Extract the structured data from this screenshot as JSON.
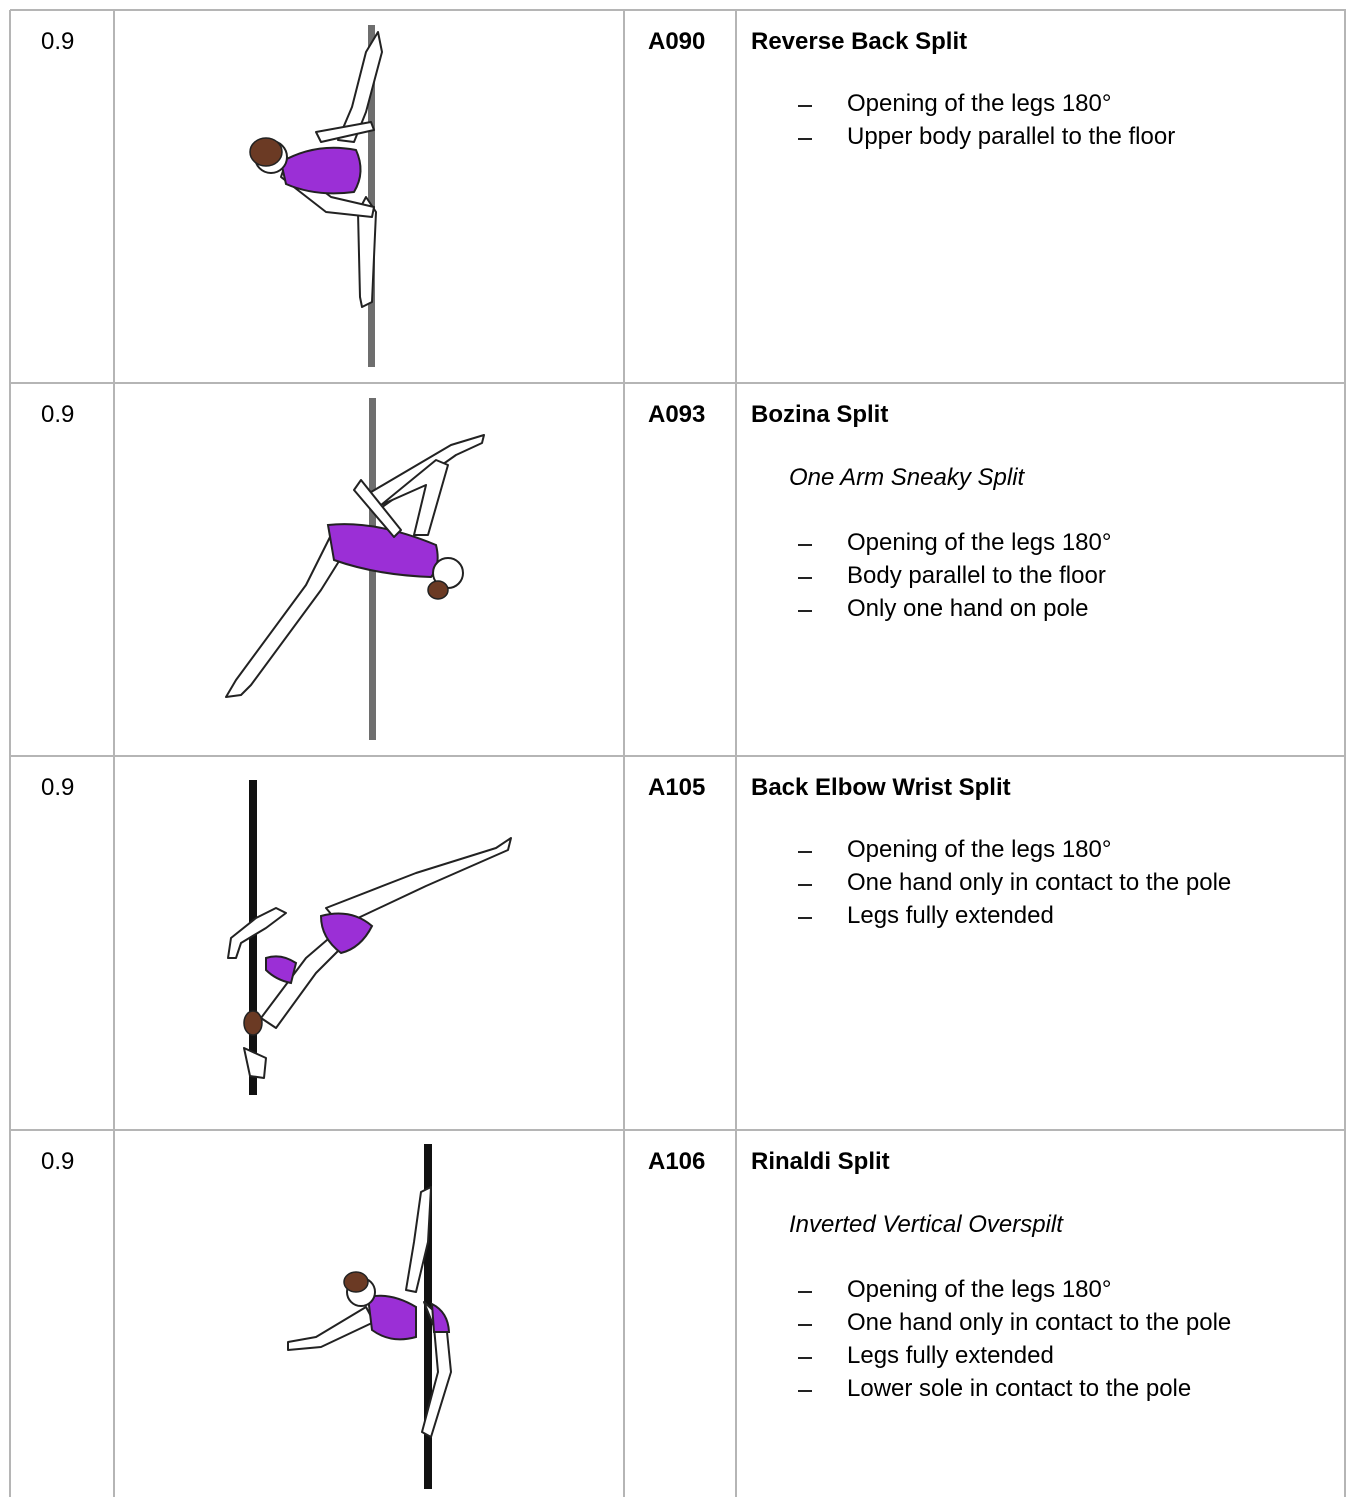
{
  "rows": [
    {
      "score": 0.9,
      "code": "A090",
      "name": "Reverse Back Split",
      "criteria": [
        "Opening of the legs 180°",
        "Upper body parallel to the floor"
      ]
    },
    {
      "score": 0.9,
      "code": "A093",
      "name": "Bozina Split",
      "alias": "One Arm Sneaky Split",
      "criteria": [
        "Opening of the legs 180°",
        "Body parallel to the floor",
        "Only one hand on pole"
      ]
    },
    {
      "score": 0.9,
      "code": "A105",
      "name": "Back Elbow Wrist Split",
      "criteria": [
        "Opening of the legs 180°",
        "One hand only in contact to the pole",
        "Legs fully extended"
      ]
    },
    {
      "score": 0.9,
      "code": "A106",
      "name": "Rinaldi Split",
      "alias": "Inverted Vertical Overspilt",
      "criteria": [
        "Opening of the legs 180°",
        "One hand only in contact to the pole",
        "Legs fully extended",
        "Lower sole in contact to the pole"
      ]
    }
  ]
}
